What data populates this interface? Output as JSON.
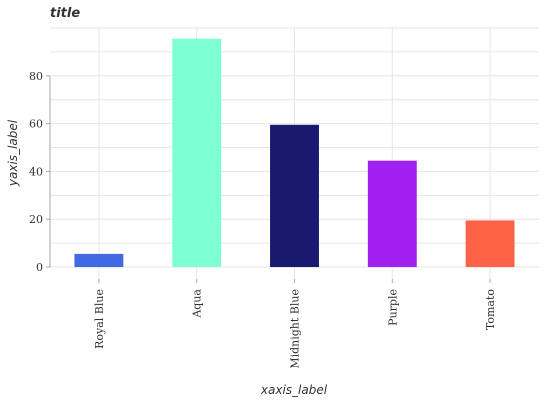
{
  "chart_data": {
    "type": "bar",
    "title": "title",
    "xlabel": "xaxis_label",
    "ylabel": "yaxis_label",
    "categories": [
      "Royal Blue",
      "Aqua",
      "Midnight Blue",
      "Purple",
      "Tomato"
    ],
    "values": [
      5.5,
      95.5,
      59.5,
      44.5,
      19.5
    ],
    "colors": [
      "#4169e1",
      "#7fffd4",
      "#191970",
      "#a020f0",
      "#ff6347"
    ],
    "yticks": [
      0,
      20,
      40,
      60,
      80
    ],
    "ylim": [
      -5,
      100
    ],
    "grid": true,
    "legend": "none"
  }
}
